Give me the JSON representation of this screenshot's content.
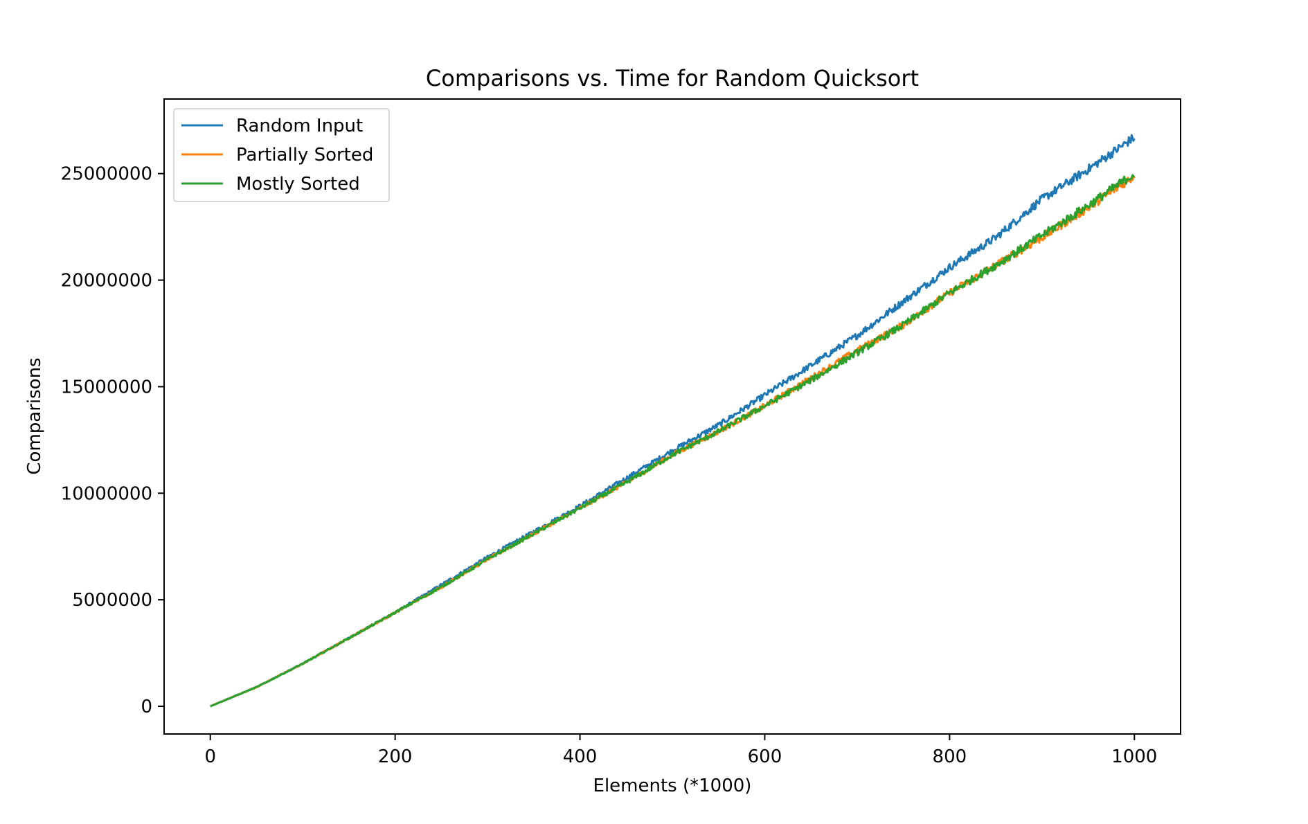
{
  "chart_data": {
    "type": "line",
    "title": "Comparisons vs. Time for Random Quicksort",
    "xlabel": "Elements (*1000)",
    "ylabel": "Comparisons",
    "xlim": [
      -50,
      1050
    ],
    "ylim": [
      -1300000,
      28500000
    ],
    "xticks": [
      0,
      200,
      400,
      600,
      800,
      1000
    ],
    "xtick_labels": [
      "0",
      "200",
      "400",
      "600",
      "800",
      "1000"
    ],
    "yticks": [
      0,
      5000000,
      10000000,
      15000000,
      20000000,
      25000000
    ],
    "ytick_labels": [
      "0",
      "5000000",
      "10000000",
      "15000000",
      "20000000",
      "25000000"
    ],
    "grid": false,
    "legend_position": "upper left",
    "x": [
      0,
      50,
      100,
      150,
      200,
      250,
      300,
      350,
      400,
      450,
      500,
      550,
      600,
      650,
      700,
      750,
      800,
      850,
      900,
      950,
      1000
    ],
    "series": [
      {
        "name": "Random Input",
        "color": "#1f77b4",
        "values": [
          0,
          900000,
          2000000,
          3200000,
          4400000,
          5700000,
          7000000,
          8200000,
          9400000,
          10700000,
          12000000,
          13200000,
          14600000,
          16000000,
          17400000,
          19000000,
          20600000,
          22000000,
          23800000,
          25200000,
          26700000
        ]
      },
      {
        "name": "Partially Sorted",
        "color": "#ff7f0e",
        "values": [
          0,
          900000,
          2000000,
          3200000,
          4400000,
          5600000,
          6900000,
          8100000,
          9300000,
          10500000,
          11800000,
          12900000,
          14100000,
          15400000,
          16700000,
          17900000,
          19400000,
          20700000,
          22000000,
          23400000,
          24900000
        ]
      },
      {
        "name": "Mostly Sorted",
        "color": "#2ca02c",
        "values": [
          0,
          900000,
          2000000,
          3200000,
          4400000,
          5600000,
          6900000,
          8100000,
          9300000,
          10500000,
          11800000,
          12900000,
          14100000,
          15300000,
          16600000,
          17900000,
          19400000,
          20700000,
          22100000,
          23500000,
          25000000
        ]
      }
    ]
  }
}
